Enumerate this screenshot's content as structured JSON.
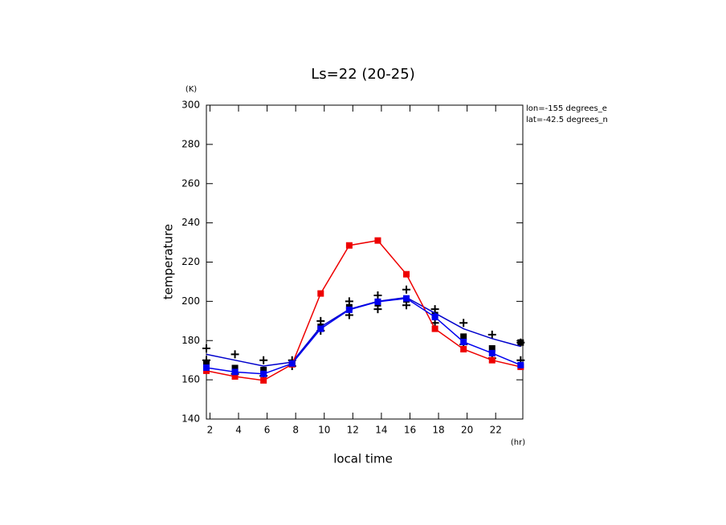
{
  "chart_data": {
    "type": "line",
    "title": "Ls=22 (20-25)",
    "y_unit": "(K)",
    "x_unit": "(hr)",
    "ylabel": "temperature",
    "xlabel": "local time",
    "annotations": [
      "lon=-155 degrees_e",
      "lat=-42.5 degrees_n"
    ],
    "x": [
      1.75,
      3.75,
      5.75,
      7.75,
      9.75,
      11.75,
      13.75,
      15.75,
      17.75,
      19.75,
      21.75,
      23.75
    ],
    "xlim": [
      1.75,
      23.9
    ],
    "xticks": [
      2,
      4,
      6,
      8,
      10,
      12,
      14,
      16,
      18,
      20,
      22
    ],
    "ylim": [
      140,
      300
    ],
    "yticks": [
      140,
      160,
      180,
      200,
      220,
      240,
      260,
      280,
      300
    ],
    "series": [
      {
        "color": "#000000",
        "marker": "cross",
        "line": false,
        "values": [
          176,
          173,
          170,
          170,
          190,
          200,
          203,
          206,
          196,
          189,
          183,
          179
        ]
      },
      {
        "color": "#000000",
        "marker": "cross",
        "line": false,
        "values": [
          170,
          163,
          162,
          167,
          185,
          193,
          196,
          198,
          189,
          178,
          171,
          170
        ]
      },
      {
        "color": "#000000",
        "marker": "square",
        "line": false,
        "values": [
          168,
          166,
          165,
          168,
          187,
          197,
          199,
          201,
          193,
          182,
          176,
          179
        ]
      },
      {
        "color": "#0000cc",
        "marker": "none",
        "line": true,
        "values": [
          173,
          170,
          167,
          169,
          187,
          196,
          200,
          202,
          194,
          186,
          181,
          177
        ]
      },
      {
        "color": "#ee0000",
        "marker": "square",
        "line": true,
        "values": [
          164.6,
          161.7,
          159.7,
          167.9,
          204,
          228.5,
          231,
          213.8,
          186,
          175.6,
          170,
          166.6
        ]
      },
      {
        "color": "#0000ee",
        "marker": "square",
        "line": true,
        "values": [
          166.2,
          164,
          163,
          168.3,
          186,
          195.7,
          199.8,
          201.5,
          192,
          179.3,
          173.6,
          167.5
        ]
      }
    ]
  }
}
